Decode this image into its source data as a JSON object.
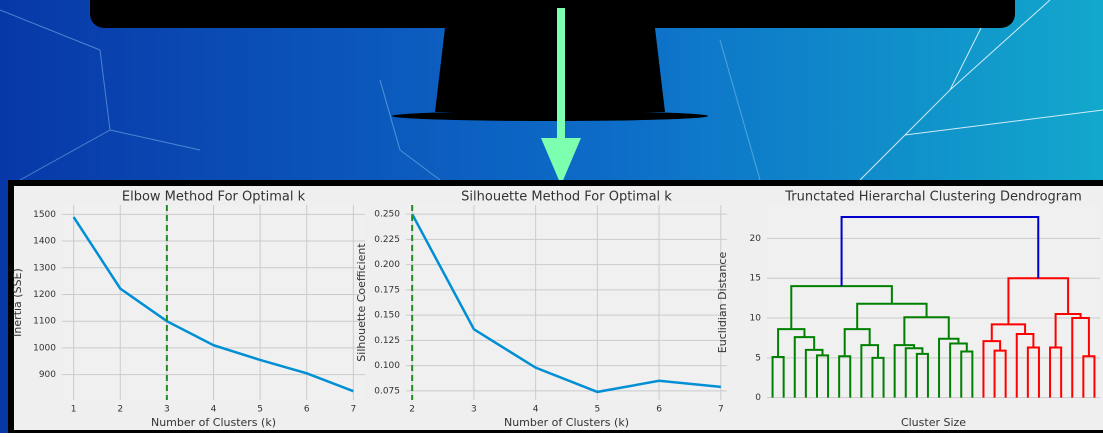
{
  "chart_data": [
    {
      "type": "line",
      "title": "Elbow Method For Optimal k",
      "x_label": "Number of Clusters (k)",
      "y_label": "Inertia (SSE)",
      "x": [
        1,
        2,
        3,
        4,
        5,
        6,
        7
      ],
      "values": [
        1490,
        1222,
        1100,
        1010,
        955,
        905,
        838
      ],
      "color": "#008fd5",
      "xlim": [
        0.75,
        7.25
      ],
      "xticks": [
        1,
        2,
        3,
        4,
        5,
        6,
        7
      ],
      "ylim": [
        805,
        1535
      ],
      "yticks": [
        900,
        1000,
        1100,
        1200,
        1300,
        1400,
        1500
      ],
      "vline": 3,
      "vline_color": "#228b22",
      "grid": true
    },
    {
      "type": "line",
      "title": "Silhouette Method For Optimal k",
      "x_label": "Number of Clusters (k)",
      "y_label": "Silhouette Coefficient",
      "x": [
        2,
        3,
        4,
        5,
        6,
        7
      ],
      "values": [
        0.25,
        0.136,
        0.098,
        0.074,
        0.085,
        0.079
      ],
      "color": "#008fd5",
      "xlim": [
        1.9,
        7.1
      ],
      "xticks": [
        2,
        3,
        4,
        5,
        6,
        7
      ],
      "ylim": [
        0.066,
        0.259
      ],
      "yticks": [
        0.075,
        {
          "value": 0.1,
          "label": "0.100"
        },
        0.125,
        {
          "value": 0.15,
          "label": "0.150"
        },
        0.175,
        {
          "value": 0.2,
          "label": "0.200"
        },
        0.225,
        {
          "value": 0.25,
          "label": "0.250"
        }
      ],
      "vline": 2,
      "vline_color": "#228b22",
      "grid": true
    },
    {
      "type": "dendrogram",
      "title": "Trunctated Hierarchal Clustering Dendrogram",
      "x_label": "Cluster Size",
      "y_label": "Euclidian Distance",
      "ylim": [
        -0.3,
        24.2
      ],
      "yticks": [
        0,
        5,
        10,
        15,
        20
      ],
      "grid": true,
      "linkage": [
        [
          0,
          1,
          5.1
        ],
        [
          4,
          5,
          5.3
        ],
        [
          3,
          31,
          6.0
        ],
        [
          2,
          32,
          7.6
        ],
        [
          30,
          33,
          8.6
        ],
        [
          6,
          7,
          5.2
        ],
        [
          9,
          10,
          5.0
        ],
        [
          8,
          36,
          6.6
        ],
        [
          35,
          37,
          8.6
        ],
        [
          13,
          14,
          5.5
        ],
        [
          12,
          39,
          6.2
        ],
        [
          11,
          40,
          6.6
        ],
        [
          17,
          18,
          5.8
        ],
        [
          16,
          42,
          6.8
        ],
        [
          15,
          43,
          7.4
        ],
        [
          41,
          44,
          10.1
        ],
        [
          38,
          45,
          11.8
        ],
        [
          34,
          46,
          14.0
        ],
        [
          20,
          21,
          5.9
        ],
        [
          19,
          48,
          7.1
        ],
        [
          23,
          24,
          6.3
        ],
        [
          22,
          50,
          8.0
        ],
        [
          49,
          51,
          9.2
        ],
        [
          25,
          26,
          6.3
        ],
        [
          28,
          29,
          5.2
        ],
        [
          27,
          54,
          10.0
        ],
        [
          53,
          55,
          10.5
        ],
        [
          52,
          56,
          15.0
        ],
        [
          47,
          57,
          22.7
        ]
      ],
      "link_colors": [
        "#008000",
        "#008000",
        "#008000",
        "#008000",
        "#008000",
        "#008000",
        "#008000",
        "#008000",
        "#008000",
        "#008000",
        "#008000",
        "#008000",
        "#008000",
        "#008000",
        "#008000",
        "#008000",
        "#008000",
        "#008000",
        "#ff0000",
        "#ff0000",
        "#ff0000",
        "#ff0000",
        "#ff0000",
        "#ff0000",
        "#ff0000",
        "#ff0000",
        "#ff0000",
        "#ff0000",
        "#0000cc"
      ]
    }
  ]
}
